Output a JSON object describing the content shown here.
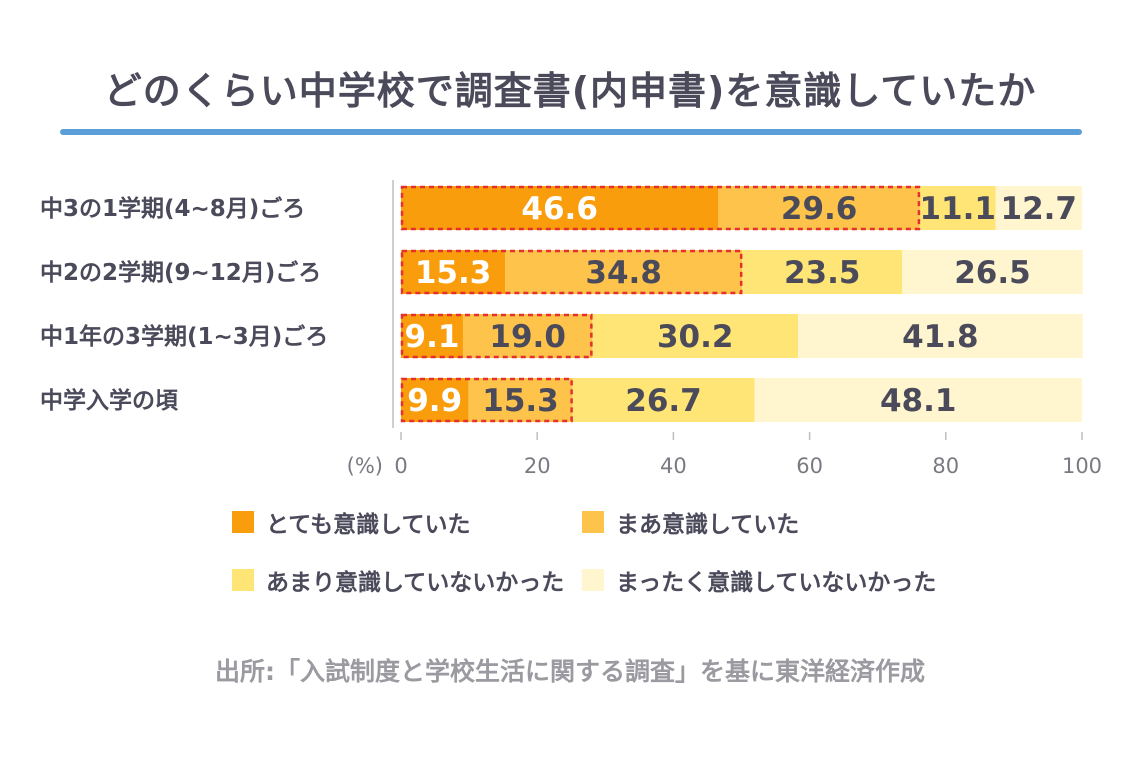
{
  "title": "どのくらい中学校で調査書(内申書)を意識していたか",
  "source": "出所:「入試制度と学校生活に関する調査」を基に東洋経済作成",
  "colors": {
    "title_underline": "#5b9fd9",
    "series": [
      "#fa9d0c",
      "#fdc34a",
      "#ffe576",
      "#fff5cf"
    ],
    "highlight_dash": "#e53030"
  },
  "chart_data": {
    "type": "bar",
    "orientation": "horizontal",
    "stacked": true,
    "title": "どのくらい中学校で調査書(内申書)を意識していたか",
    "categories": [
      "中3の1学期(4~8月)ごろ",
      "中2の2学期(9~12月)ごろ",
      "中1年の3学期(1~3月)ごろ",
      "中学入学の頃"
    ],
    "series": [
      {
        "name": "とても意識していた",
        "values": [
          46.6,
          15.3,
          9.1,
          9.9
        ]
      },
      {
        "name": "まあ意識していた",
        "values": [
          29.6,
          34.8,
          19.0,
          15.3
        ]
      },
      {
        "name": "あまり意識していないかった",
        "values": [
          11.1,
          23.5,
          30.2,
          26.7
        ]
      },
      {
        "name": "まったく意識していないかった",
        "values": [
          12.7,
          26.5,
          41.8,
          48.1
        ]
      }
    ],
    "xlabel": "(%)",
    "xlim": [
      0,
      100
    ],
    "xticks": [
      0,
      20,
      40,
      60,
      80,
      100
    ],
    "grid": false,
    "legend_position": "bottom",
    "highlight": "dashed red outline around the sum of the first two series"
  }
}
